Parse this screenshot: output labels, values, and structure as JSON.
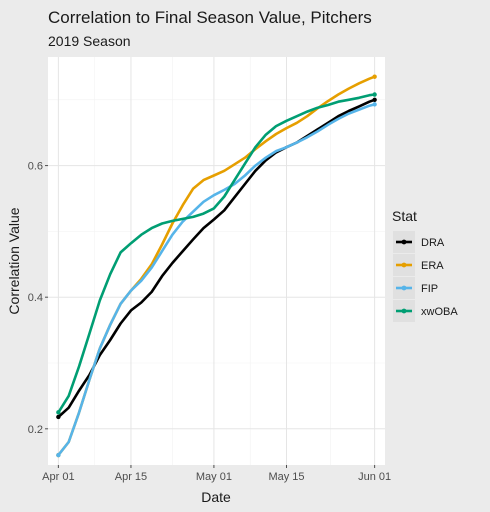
{
  "chart_data": {
    "type": "line",
    "title": "Correlation to Final Season Value, Pitchers",
    "subtitle": "2019 Season",
    "xlabel": "Date",
    "ylabel": "Correlation Value",
    "x_ticks": [
      "Apr 01",
      "Apr 15",
      "May 01",
      "May 15",
      "Jun 01"
    ],
    "x_tick_days": [
      0,
      14,
      30,
      44,
      61
    ],
    "xlim_days": [
      -2,
      63
    ],
    "y_ticks": [
      0.2,
      0.4,
      0.6
    ],
    "y_tick_labels": [
      "0.2",
      "0.4",
      "0.6"
    ],
    "ylim": [
      0.145,
      0.765
    ],
    "grid": true,
    "legend_title": "Stat",
    "legend_position": "right",
    "series": [
      {
        "name": "DRA",
        "color": "#000000",
        "x": [
          0,
          2,
          4,
          6,
          8,
          10,
          12,
          14,
          16,
          18,
          20,
          22,
          24,
          26,
          28,
          30,
          32,
          34,
          36,
          38,
          40,
          42,
          44,
          46,
          48,
          50,
          52,
          54,
          56,
          58,
          60,
          61
        ],
        "y": [
          0.218,
          0.232,
          0.258,
          0.282,
          0.312,
          0.335,
          0.36,
          0.38,
          0.392,
          0.408,
          0.432,
          0.452,
          0.47,
          0.488,
          0.505,
          0.518,
          0.532,
          0.552,
          0.572,
          0.592,
          0.608,
          0.62,
          0.628,
          0.635,
          0.645,
          0.655,
          0.665,
          0.675,
          0.683,
          0.69,
          0.697,
          0.7
        ]
      },
      {
        "name": "ERA",
        "color": "#e69f00",
        "x": [
          0,
          2,
          4,
          6,
          8,
          10,
          12,
          14,
          16,
          18,
          20,
          22,
          24,
          26,
          28,
          30,
          32,
          34,
          36,
          38,
          40,
          42,
          44,
          46,
          48,
          50,
          52,
          54,
          56,
          58,
          60,
          61
        ],
        "y": [
          0.16,
          0.18,
          0.225,
          0.275,
          0.322,
          0.358,
          0.39,
          0.41,
          0.428,
          0.45,
          0.48,
          0.512,
          0.54,
          0.565,
          0.578,
          0.585,
          0.592,
          0.602,
          0.612,
          0.625,
          0.637,
          0.648,
          0.657,
          0.665,
          0.675,
          0.687,
          0.698,
          0.708,
          0.717,
          0.725,
          0.732,
          0.735
        ]
      },
      {
        "name": "FIP",
        "color": "#56b4e9",
        "x": [
          0,
          2,
          4,
          6,
          8,
          10,
          12,
          14,
          16,
          18,
          20,
          22,
          24,
          26,
          28,
          30,
          32,
          34,
          36,
          38,
          40,
          42,
          44,
          46,
          48,
          50,
          52,
          54,
          56,
          58,
          60,
          61
        ],
        "y": [
          0.16,
          0.18,
          0.225,
          0.275,
          0.322,
          0.358,
          0.39,
          0.41,
          0.425,
          0.445,
          0.47,
          0.495,
          0.515,
          0.53,
          0.545,
          0.555,
          0.563,
          0.572,
          0.585,
          0.6,
          0.612,
          0.622,
          0.628,
          0.635,
          0.643,
          0.652,
          0.662,
          0.671,
          0.679,
          0.685,
          0.691,
          0.693
        ]
      },
      {
        "name": "xwOBA",
        "color": "#009e73",
        "x": [
          0,
          2,
          4,
          6,
          8,
          10,
          12,
          14,
          16,
          18,
          20,
          22,
          24,
          26,
          28,
          30,
          32,
          34,
          36,
          38,
          40,
          42,
          44,
          46,
          48,
          50,
          52,
          54,
          56,
          58,
          60,
          61
        ],
        "y": [
          0.225,
          0.25,
          0.295,
          0.345,
          0.395,
          0.435,
          0.468,
          0.482,
          0.495,
          0.505,
          0.512,
          0.516,
          0.519,
          0.522,
          0.527,
          0.535,
          0.553,
          0.578,
          0.603,
          0.628,
          0.647,
          0.66,
          0.668,
          0.675,
          0.682,
          0.688,
          0.692,
          0.697,
          0.7,
          0.703,
          0.707,
          0.708
        ]
      }
    ]
  }
}
